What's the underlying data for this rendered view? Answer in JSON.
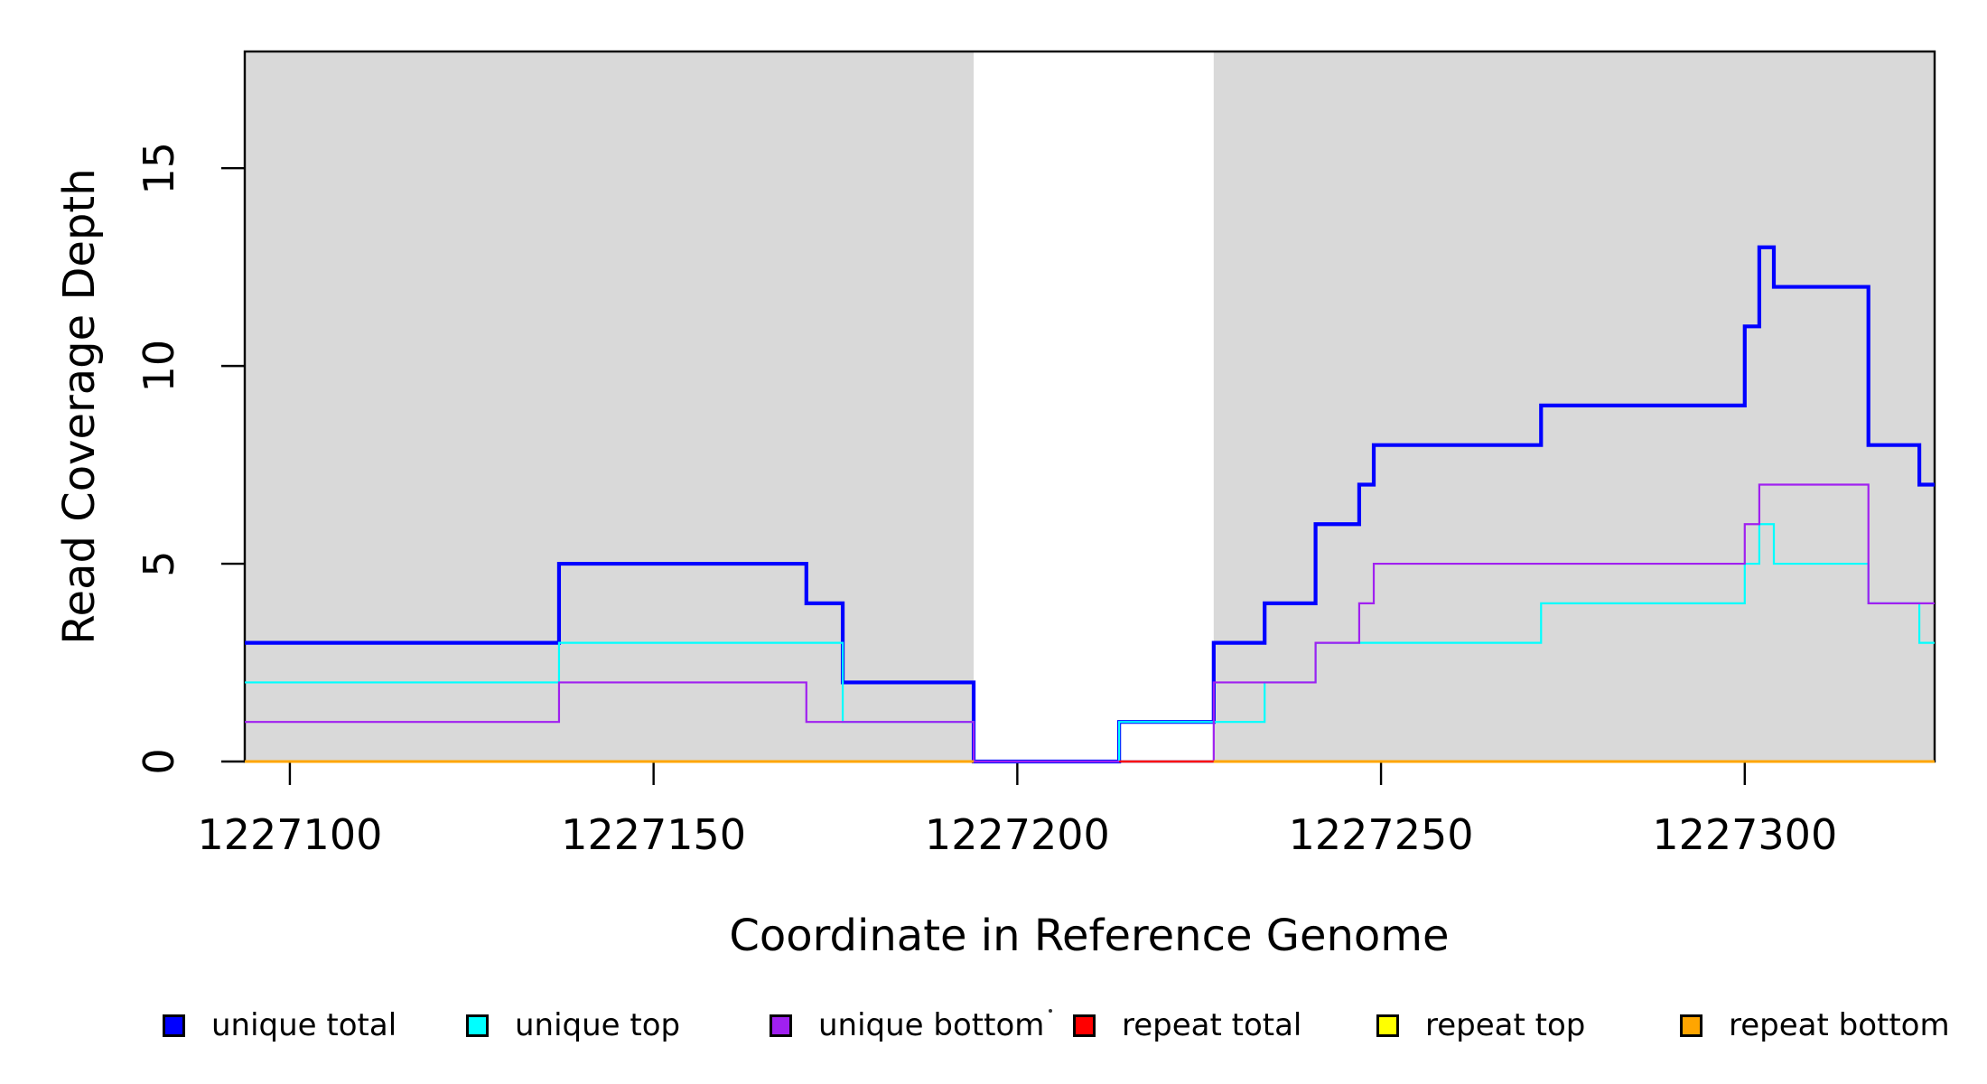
{
  "figure": {
    "background": "#ffffff",
    "shading_color": "#d9d9d9",
    "box_color": "#000000"
  },
  "axes": {
    "x_title": "Coordinate in Reference Genome",
    "y_title": "Read Coverage Depth",
    "x_tick_labels": [
      "1227100",
      "1227150",
      "1227200",
      "1227250",
      "1227300"
    ],
    "y_tick_labels": [
      "0",
      "5",
      "10",
      "15"
    ]
  },
  "legend": {
    "items": [
      {
        "label": "unique total",
        "color": "#0000FF"
      },
      {
        "label": "unique top",
        "color": "#00FFFF"
      },
      {
        "label": "unique bottom",
        "color": "#A020F0"
      },
      {
        "label": "repeat total",
        "color": "#FF0000"
      },
      {
        "label": "repeat top",
        "color": "#FFFF00"
      },
      {
        "label": "repeat bottom",
        "color": "#FFA500"
      }
    ]
  },
  "chart_data": {
    "type": "line",
    "subtype": "step-coverage",
    "title": "",
    "xlabel": "Coordinate in Reference Genome",
    "ylabel": "Read Coverage Depth",
    "xlim": [
      1227093.8,
      1227326.1
    ],
    "ylim": [
      0,
      17.95
    ],
    "xticks": [
      1227100,
      1227150,
      1227200,
      1227250,
      1227300
    ],
    "yticks": [
      0,
      5,
      10,
      15
    ],
    "grid": false,
    "legend_position": "bottom",
    "shaded_regions": [
      {
        "x0": 1227093.8,
        "x1": 1227194,
        "color": "#d9d9d9"
      },
      {
        "x0": 1227227,
        "x1": 1227326.1,
        "color": "#d9d9d9"
      }
    ],
    "series": [
      {
        "name": "unique total",
        "color": "#0000FF",
        "lwd": 4.2,
        "segments": [
          [
            [
              1227093.8,
              3
            ],
            [
              1227137,
              5
            ],
            [
              1227171,
              4
            ],
            [
              1227176,
              2
            ],
            [
              1227194,
              0
            ],
            [
              1227214,
              1
            ],
            [
              1227227,
              3
            ],
            [
              1227234,
              4
            ],
            [
              1227241,
              6
            ],
            [
              1227247,
              7
            ],
            [
              1227249,
              8
            ],
            [
              1227272,
              9
            ],
            [
              1227300,
              11
            ],
            [
              1227302,
              13
            ],
            [
              1227304,
              12
            ],
            [
              1227317,
              8
            ],
            [
              1227324,
              7
            ],
            [
              1227326.1,
              7
            ]
          ]
        ]
      },
      {
        "name": "unique top",
        "color": "#00FFFF",
        "lwd": 2.2,
        "segments": [
          [
            [
              1227093.8,
              2
            ],
            [
              1227137,
              3
            ],
            [
              1227176,
              1
            ],
            [
              1227194,
              0
            ],
            [
              1227214,
              1
            ],
            [
              1227234,
              2
            ],
            [
              1227241,
              3
            ],
            [
              1227272,
              4
            ],
            [
              1227300,
              5
            ],
            [
              1227302,
              6
            ],
            [
              1227304,
              5
            ],
            [
              1227317,
              4
            ],
            [
              1227324,
              3
            ],
            [
              1227326.1,
              3
            ]
          ]
        ]
      },
      {
        "name": "unique bottom",
        "color": "#A020F0",
        "lwd": 2.2,
        "segments": [
          [
            [
              1227093.8,
              1
            ],
            [
              1227137,
              2
            ],
            [
              1227171,
              1
            ],
            [
              1227194,
              0
            ],
            [
              1227227,
              2
            ],
            [
              1227241,
              3
            ],
            [
              1227247,
              4
            ],
            [
              1227249,
              5
            ],
            [
              1227300,
              6
            ],
            [
              1227302,
              7
            ],
            [
              1227317,
              4
            ],
            [
              1227326.1,
              4
            ]
          ]
        ]
      },
      {
        "name": "repeat total",
        "color": "#FF0000",
        "lwd": 2.2,
        "segments": [
          [
            [
              1227214,
              0
            ],
            [
              1227227,
              0
            ]
          ]
        ]
      },
      {
        "name": "repeat top",
        "color": "#FFFF00",
        "lwd": 2.2,
        "segments": [
          [
            [
              1227093.8,
              0
            ],
            [
              1227194,
              0
            ]
          ],
          [
            [
              1227227,
              0
            ],
            [
              1227326.1,
              0
            ]
          ]
        ]
      },
      {
        "name": "repeat bottom",
        "color": "#FFA500",
        "lwd": 3.0,
        "segments": [
          [
            [
              1227093.8,
              0
            ],
            [
              1227194,
              0
            ]
          ],
          [
            [
              1227227,
              0
            ],
            [
              1227326.1,
              0
            ]
          ]
        ]
      }
    ]
  }
}
